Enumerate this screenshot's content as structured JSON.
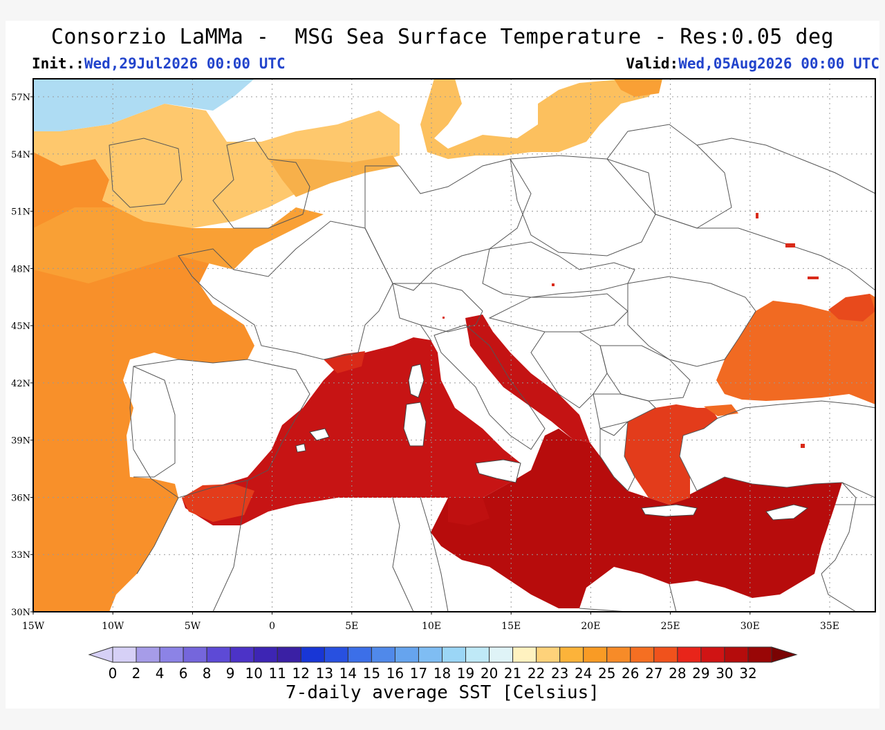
{
  "header": {
    "title": "Consorzio LaMMa -  MSG Sea Surface Temperature - Res:0.05 deg",
    "init_label": "Init.:",
    "init_value": "Wed,29Jul2026 00:00 UTC",
    "valid_label": "Valid:",
    "valid_value": "Wed,05Aug2026 00:00 UTC"
  },
  "map": {
    "lon_ticks": [
      "15W",
      "10W",
      "5W",
      "0",
      "5E",
      "10E",
      "15E",
      "20E",
      "25E",
      "30E",
      "35E"
    ],
    "lat_ticks": [
      "57N",
      "54N",
      "51N",
      "48N",
      "45N",
      "42N",
      "39N",
      "36N",
      "33N",
      "30N"
    ],
    "land_color": "#ffffff",
    "border_color": "#444444",
    "regions": [
      {
        "name": "north-atlantic-cold",
        "color": "#aedcf3",
        "sst": 18
      },
      {
        "name": "atlantic-shelf",
        "color": "#fec86d",
        "sst": 21
      },
      {
        "name": "bay-of-biscay",
        "color": "#f9a035",
        "sst": 23
      },
      {
        "name": "iberian-atlantic",
        "color": "#f8902a",
        "sst": 24
      },
      {
        "name": "black-sea",
        "color": "#f16a22",
        "sst": 26
      },
      {
        "name": "aegean-sea",
        "color": "#e33c1b",
        "sst": 27
      },
      {
        "name": "western-mediterranean",
        "color": "#c71414",
        "sst": 29
      },
      {
        "name": "central-eastern-mediterranean",
        "color": "#b70c0c",
        "sst": 30
      }
    ]
  },
  "colorbar": {
    "labels": [
      "0",
      "2",
      "4",
      "6",
      "8",
      "9",
      "10",
      "11",
      "12",
      "13",
      "14",
      "15",
      "16",
      "17",
      "18",
      "19",
      "20",
      "21",
      "22",
      "23",
      "24",
      "25",
      "26",
      "27",
      "28",
      "29",
      "30",
      "32"
    ],
    "colors": [
      "#d6d0f6",
      "#a69ce8",
      "#8c83e6",
      "#7566dc",
      "#5d4ad6",
      "#4c33c7",
      "#3d25b4",
      "#3a20a4",
      "#1836d6",
      "#2850e0",
      "#3c6fe8",
      "#5089ea",
      "#66a4ee",
      "#7fbdf3",
      "#9bd6f6",
      "#bfe9f7",
      "#dff3f7",
      "#fff2c0",
      "#fed27a",
      "#fcb33a",
      "#f99b25",
      "#f78b28",
      "#f56f22",
      "#f0521c",
      "#e8251a",
      "#d01414",
      "#b50c0c",
      "#990606"
    ],
    "title": "7-daily average SST [Celsius]"
  }
}
